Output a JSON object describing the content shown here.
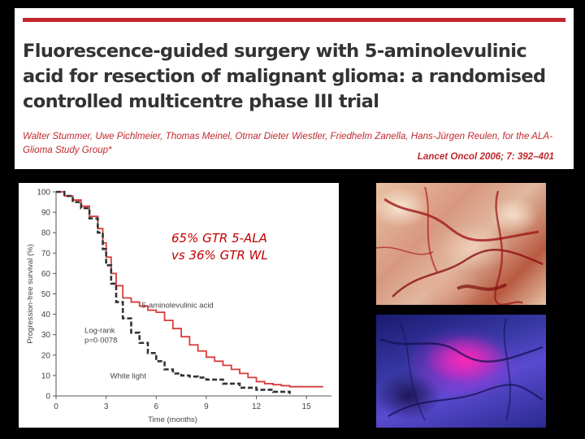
{
  "header": {
    "title": "Fluorescence-guided surgery with 5-aminolevulinic acid for resection of malignant glioma: a randomised controlled multicentre phase III trial",
    "authors": "Walter Stummer, Uwe Pichlmeier, Thomas Meinel, Otmar Dieter Wiestler, Friedhelm Zanella, Hans-Jürgen Reulen, for the ALA-Glioma Study Group*",
    "citation": "Lancet Oncol 2006; 7: 392–401",
    "accent_color": "#c0282d"
  },
  "overlay": {
    "line1": "65% GTR 5-ALA",
    "line2": "vs 36% GTR WL",
    "color": "#c40000"
  },
  "photos": [
    {
      "name": "white-light-surgical-photo"
    },
    {
      "name": "fluorescence-surgical-photo"
    }
  ],
  "chart_data": {
    "type": "line",
    "title": "",
    "xlabel": "Time (months)",
    "ylabel": "Progression-free survival (%)",
    "xlim": [
      0,
      16.5
    ],
    "ylim": [
      0,
      100
    ],
    "x_ticks": [
      0,
      3,
      6,
      9,
      12,
      15
    ],
    "y_ticks": [
      0,
      10,
      20,
      30,
      40,
      50,
      60,
      70,
      80,
      90,
      100
    ],
    "annotations": {
      "logrank_line1": "Log-rank",
      "logrank_line2": "p=0·0078"
    },
    "series": [
      {
        "name": "5-aminolevulinic acid",
        "color": "#d93a3a",
        "style": "solid",
        "x": [
          0,
          0.5,
          1,
          1.5,
          2,
          2.5,
          2.8,
          3,
          3.3,
          3.6,
          4,
          4.5,
          5,
          5.5,
          6,
          6.5,
          7,
          7.5,
          8,
          8.5,
          9,
          9.5,
          10,
          10.5,
          11,
          11.5,
          12,
          12.5,
          13,
          13.5,
          14,
          15,
          16
        ],
        "values": [
          100,
          98,
          96,
          93,
          88,
          82,
          75,
          68,
          60,
          54,
          48,
          46,
          44,
          42,
          41,
          37,
          33,
          29,
          25,
          22,
          19,
          17,
          15,
          13,
          11,
          9,
          7,
          6,
          5.5,
          5,
          4.5,
          4.5,
          4.5
        ]
      },
      {
        "name": "White light",
        "color": "#333333",
        "style": "dashed",
        "x": [
          0,
          0.5,
          1,
          1.5,
          2,
          2.5,
          2.8,
          3,
          3.3,
          3.6,
          4,
          4.5,
          5,
          5.5,
          6,
          6.5,
          7,
          7.5,
          8,
          8.5,
          9,
          10,
          11,
          12,
          13,
          14
        ],
        "values": [
          100,
          98,
          95,
          92,
          87,
          80,
          72,
          64,
          55,
          46,
          38,
          31,
          26,
          21,
          17,
          13,
          11,
          10,
          9.5,
          9,
          8,
          6,
          4,
          3,
          2,
          1
        ]
      }
    ]
  }
}
